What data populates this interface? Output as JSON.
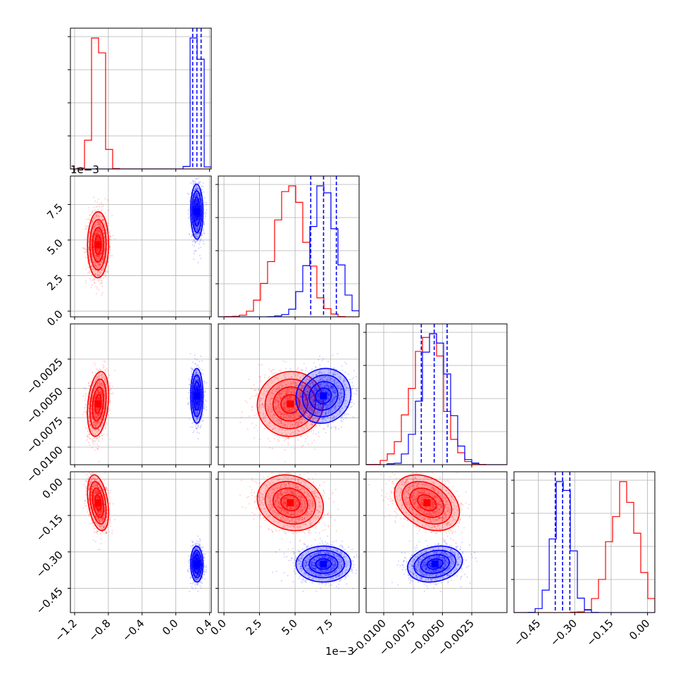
{
  "chart_data": {
    "type": "scatter",
    "subtype": "corner",
    "colors": {
      "red": "#ff0000",
      "blue": "#0000ff",
      "grid": "#b0b0b0"
    },
    "grid": true,
    "params": [
      {
        "id": "p0",
        "range": [
          -1.25,
          0.42
        ],
        "ticks": [
          {
            "v": -1.2,
            "label": "−1.2"
          },
          {
            "v": -0.8,
            "label": "−0.8"
          },
          {
            "v": -0.4,
            "label": "−0.4"
          },
          {
            "v": 0.0,
            "label": "0.0"
          },
          {
            "v": 0.4,
            "label": "0.4"
          }
        ],
        "offset": ""
      },
      {
        "id": "p1",
        "range": [
          -0.4,
          9.5
        ],
        "ticks": [
          {
            "v": 0.0,
            "label": "0.0"
          },
          {
            "v": 2.5,
            "label": "2.5"
          },
          {
            "v": 5.0,
            "label": "5.0"
          },
          {
            "v": 7.5,
            "label": "7.5"
          }
        ],
        "offset": "1e−3"
      },
      {
        "id": "p2",
        "range": [
          -0.0115,
          0.0005
        ],
        "ticks": [
          {
            "v": -0.01,
            "label": "−0.0100"
          },
          {
            "v": -0.0075,
            "label": "−0.0075"
          },
          {
            "v": -0.005,
            "label": "−0.0050"
          },
          {
            "v": -0.0025,
            "label": "−0.0025"
          }
        ],
        "offset": ""
      },
      {
        "id": "p3",
        "range": [
          -0.55,
          0.03
        ],
        "ticks": [
          {
            "v": -0.45,
            "label": "−0.45"
          },
          {
            "v": -0.3,
            "label": "−0.30"
          },
          {
            "v": -0.15,
            "label": "−0.15"
          },
          {
            "v": 0.0,
            "label": "0.00"
          }
        ],
        "offset": ""
      }
    ],
    "series": [
      {
        "color": "red",
        "mean": [
          -0.92,
          4.7,
          -0.0063,
          -0.1
        ],
        "sd": [
          0.06,
          1.1,
          0.0013,
          0.055
        ],
        "corr": {
          "0-3": -0.4,
          "1-3": -0.15,
          "2-3": -0.25,
          "0-2": 0.3
        },
        "quantiles": []
      },
      {
        "color": "blue",
        "mean": [
          0.25,
          7.0,
          -0.0056,
          -0.35
        ],
        "sd": [
          0.035,
          0.9,
          0.0011,
          0.035
        ],
        "corr": {
          "2-3": 0.2,
          "1-2": 0.1
        },
        "quantiles": [
          [
            0.2,
            0.25,
            0.3
          ],
          [
            6.1,
            7.0,
            7.9
          ],
          [
            -0.0068,
            -0.0057,
            -0.0046
          ],
          [
            -0.38,
            -0.35,
            -0.32
          ]
        ]
      }
    ]
  }
}
